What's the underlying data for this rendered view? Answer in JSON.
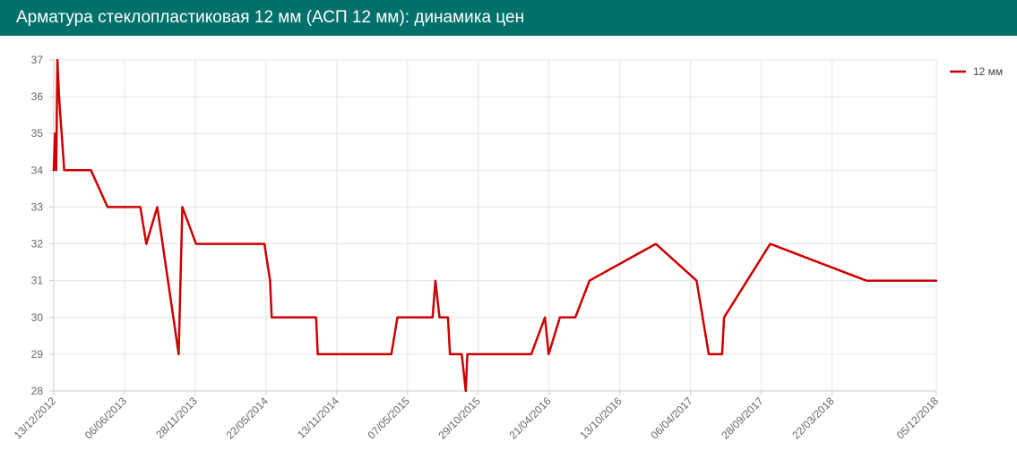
{
  "header": {
    "title": "Арматура стеклопластиковая 12 мм (АСП 12 мм): динамика цен",
    "background": "#00706b"
  },
  "chart_data": {
    "type": "line",
    "ylim": [
      28,
      37
    ],
    "y_ticks": [
      28,
      29,
      30,
      31,
      32,
      33,
      34,
      35,
      36,
      37
    ],
    "x_tick_labels": [
      "13/12/2012",
      "06/06/2013",
      "28/11/2013",
      "22/05/2014",
      "13/11/2014",
      "07/05/2015",
      "29/10/2015",
      "21/04/2016",
      "13/10/2016",
      "06/04/2017",
      "28/09/2017",
      "22/03/2018",
      "05/12/2018"
    ],
    "grid": true,
    "legend_position": "top-right",
    "series": [
      {
        "name": "12 мм",
        "color": "#cc0000",
        "points": [
          [
            "2012-12-13",
            34
          ],
          [
            "2012-12-16",
            35
          ],
          [
            "2012-12-19",
            34
          ],
          [
            "2012-12-22",
            37
          ],
          [
            "2012-12-26",
            36
          ],
          [
            "2013-01-08",
            34
          ],
          [
            "2013-03-15",
            34
          ],
          [
            "2013-04-25",
            33
          ],
          [
            "2013-07-15",
            33
          ],
          [
            "2013-07-30",
            32
          ],
          [
            "2013-08-26",
            33
          ],
          [
            "2013-10-18",
            29
          ],
          [
            "2013-10-27",
            33
          ],
          [
            "2013-11-30",
            32
          ],
          [
            "2014-05-18",
            32
          ],
          [
            "2014-06-01",
            31
          ],
          [
            "2014-06-05",
            30
          ],
          [
            "2014-09-23",
            30
          ],
          [
            "2014-09-27",
            29
          ],
          [
            "2015-03-28",
            29
          ],
          [
            "2015-04-12",
            30
          ],
          [
            "2015-07-08",
            30
          ],
          [
            "2015-07-15",
            31
          ],
          [
            "2015-07-25",
            30
          ],
          [
            "2015-08-15",
            30
          ],
          [
            "2015-08-20",
            29
          ],
          [
            "2015-09-18",
            29
          ],
          [
            "2015-09-28",
            28
          ],
          [
            "2015-10-02",
            29
          ],
          [
            "2016-03-08",
            29
          ],
          [
            "2016-04-11",
            30
          ],
          [
            "2016-04-20",
            29
          ],
          [
            "2016-05-18",
            30
          ],
          [
            "2016-06-25",
            30
          ],
          [
            "2016-07-30",
            31
          ],
          [
            "2017-01-10",
            32
          ],
          [
            "2017-04-21",
            31
          ],
          [
            "2017-05-21",
            29
          ],
          [
            "2017-06-23",
            29
          ],
          [
            "2017-06-28",
            30
          ],
          [
            "2017-10-20",
            32
          ],
          [
            "2018-06-15",
            31
          ],
          [
            "2018-12-05",
            31
          ]
        ]
      }
    ]
  }
}
